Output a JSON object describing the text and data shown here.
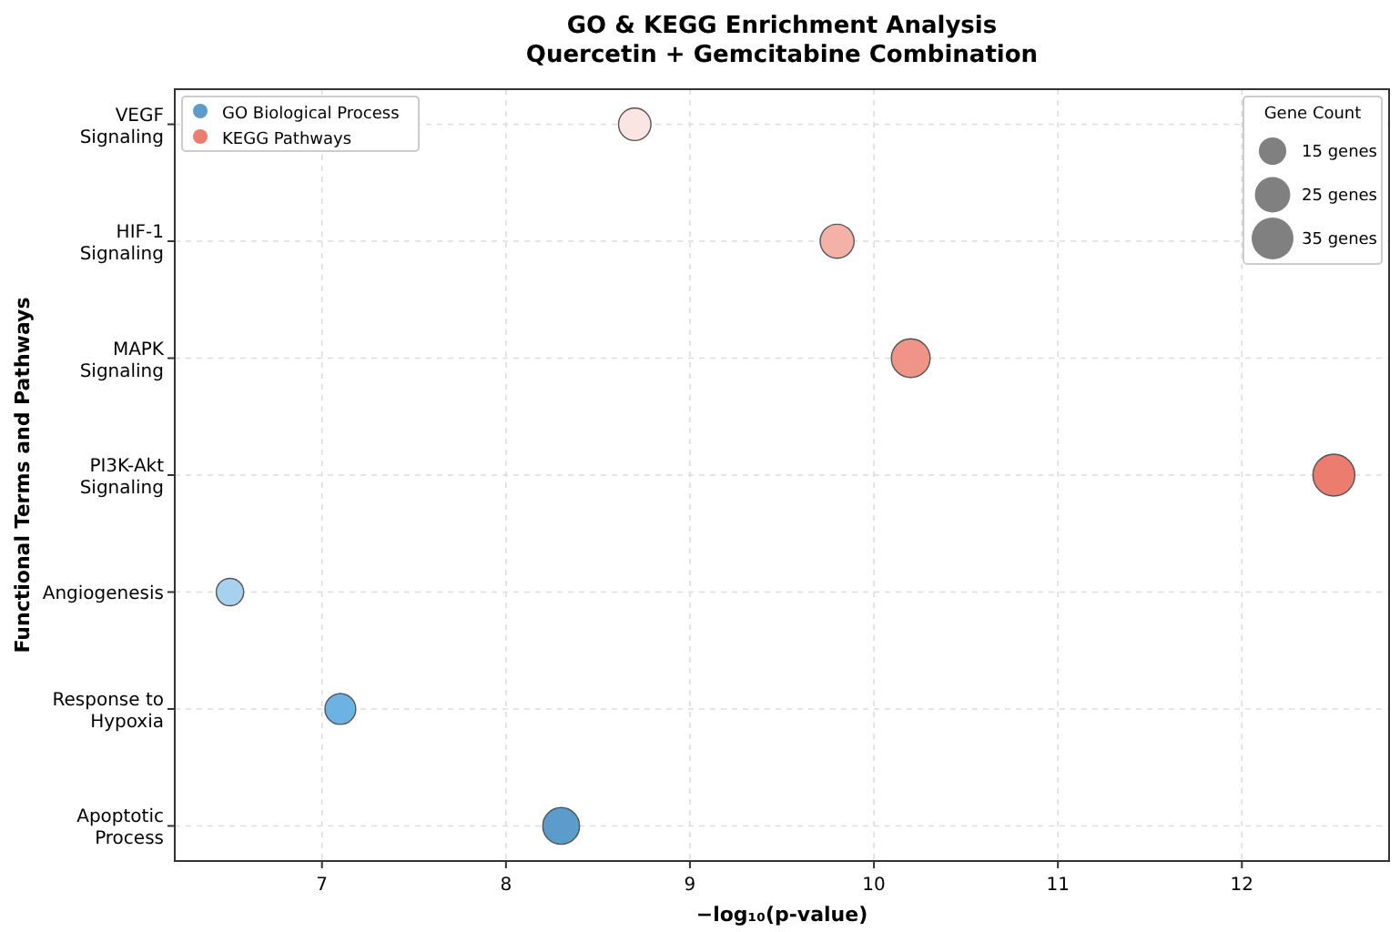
{
  "chart_data": {
    "type": "bubble",
    "title": "GO & KEGG Enrichment Analysis",
    "subtitle": "Quercetin + Gemcitabine Combination",
    "xlabel": "−log₁₀(p-value)",
    "ylabel": "Functional Terms and Pathways",
    "orientation": "horizontal",
    "categories": [
      "VEGF\nSignaling",
      "HIF-1\nSignaling",
      "MAPK\nSignaling",
      "PI3K-Akt\nSignaling",
      "Angiogenesis",
      "Response to\nHypoxia",
      "Apoptotic\nProcess"
    ],
    "series": [
      {
        "name": "GO Biological Process",
        "color": "#5b9ccc",
        "values": [
          null,
          null,
          null,
          null,
          6.5,
          7.1,
          8.3
        ],
        "sizes": [
          null,
          null,
          null,
          null,
          15,
          19,
          27
        ],
        "colors": [
          null,
          null,
          null,
          null,
          "#a7d1ee",
          "#6cb3e3",
          "#5b9ccc"
        ]
      },
      {
        "name": "KEGG Pathways",
        "color": "#eb7c6e",
        "values": [
          8.7,
          9.8,
          10.2,
          12.5,
          null,
          null,
          null
        ],
        "sizes": [
          21,
          23,
          30,
          35,
          null,
          null,
          null
        ],
        "colors": [
          "#fbe5e3",
          "#f4b1a8",
          "#ef9486",
          "#eb7c6e",
          null,
          null,
          null
        ]
      }
    ],
    "xlim": [
      6.2,
      12.8
    ],
    "xticks": [
      7,
      8,
      9,
      10,
      11,
      12
    ],
    "grid": true,
    "legend": "top left",
    "legend_title": "Gene Count",
    "size_legend": [
      {
        "value": 15,
        "label": "15 genes"
      },
      {
        "value": 25,
        "label": "25 genes"
      },
      {
        "value": 35,
        "label": "35 genes"
      }
    ]
  }
}
